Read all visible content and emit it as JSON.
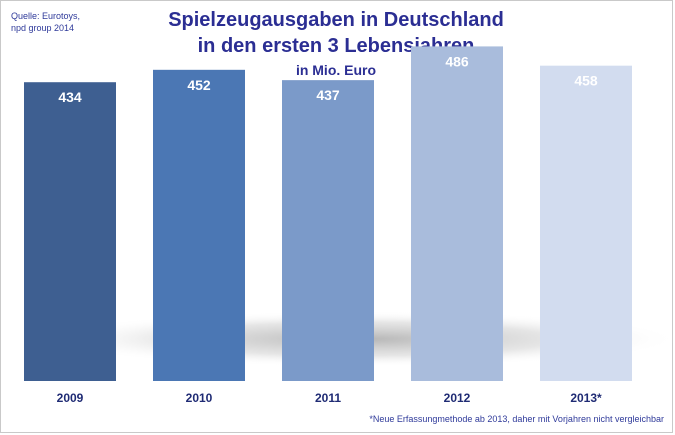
{
  "source": {
    "line1": "Quelle: Eurotoys,",
    "line2": "npd group 2014"
  },
  "chart_data": {
    "type": "bar",
    "title": "Spielzeugausgaben in Deutschland",
    "subtitle": "in den ersten 3 Lebensjahren",
    "unit": "in Mio. Euro",
    "categories": [
      "2009",
      "2010",
      "2011",
      "2012",
      "2013*"
    ],
    "values": [
      434,
      452,
      437,
      486,
      458
    ],
    "ylim": [
      0,
      520
    ],
    "xlabel": "",
    "ylabel": "",
    "grid": false,
    "legend": "none",
    "bar_colors": [
      "#3e5f91",
      "#4b77b4",
      "#7b9ac9",
      "#a9bcdc",
      "#d2dcef"
    ],
    "label_color": "#ffffff",
    "tick_color": "#1f2b74"
  },
  "footnote": "*Neue Erfassungmethode ab 2013, daher mit Vorjahren nicht vergleichbar"
}
